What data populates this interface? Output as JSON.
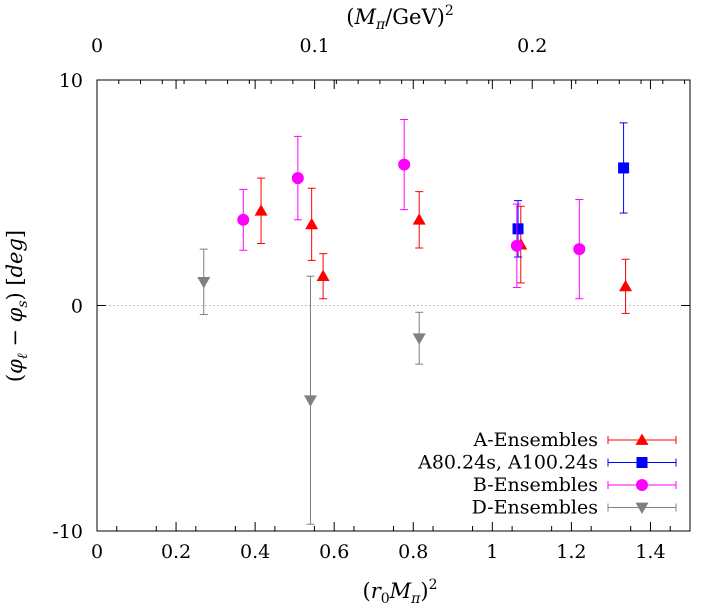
{
  "chart_data": {
    "type": "scatter",
    "xlabel": "(r₀Mπ)²",
    "ylabel": "(φℓ − φs) [deg]",
    "x2label": "(Mπ/GeV)²",
    "xlim": [
      0,
      1.5
    ],
    "ylim": [
      -10,
      10
    ],
    "x2lim": [
      0,
      0.2725
    ],
    "xticks": [
      0,
      0.2,
      0.4,
      0.6,
      0.8,
      1,
      1.2,
      1.4
    ],
    "xtick_labels": [
      "0",
      "0.2",
      "0.4",
      "0.6",
      "0.8",
      "1",
      "1.2",
      "1.4"
    ],
    "yticks": [
      -10,
      0,
      10
    ],
    "ytick_labels": [
      "-10",
      "0",
      "10"
    ],
    "x2ticks": [
      0,
      0.1,
      0.2
    ],
    "x2tick_labels": [
      "0",
      "0.1",
      "0.2"
    ],
    "reference_line_y": 0,
    "legend_position": "bottom-right",
    "series": [
      {
        "name": "A-Ensembles",
        "marker": "triangle-up",
        "color": "#ff0000",
        "points": [
          {
            "x": 0.415,
            "y": 4.2,
            "err": 1.45
          },
          {
            "x": 0.543,
            "y": 3.6,
            "err": 1.6
          },
          {
            "x": 0.572,
            "y": 1.3,
            "err": 1.0
          },
          {
            "x": 0.815,
            "y": 3.8,
            "err": 1.25
          },
          {
            "x": 1.072,
            "y": 2.7,
            "err": 1.7
          },
          {
            "x": 1.337,
            "y": 0.85,
            "err": 1.2
          }
        ]
      },
      {
        "name": "A80.24s, A100.24s",
        "marker": "square",
        "color": "#0000ff",
        "points": [
          {
            "x": 1.065,
            "y": 3.4,
            "err": 1.25
          },
          {
            "x": 1.332,
            "y": 6.1,
            "err": 2.0
          }
        ]
      },
      {
        "name": "B-Ensembles",
        "marker": "circle",
        "color": "#ff00ff",
        "points": [
          {
            "x": 0.37,
            "y": 3.8,
            "err": 1.35
          },
          {
            "x": 0.508,
            "y": 5.65,
            "err": 1.85
          },
          {
            "x": 0.777,
            "y": 6.25,
            "err": 2.0
          },
          {
            "x": 1.062,
            "y": 2.65,
            "err": 1.85
          },
          {
            "x": 1.22,
            "y": 2.5,
            "err": 2.2
          }
        ]
      },
      {
        "name": "D-Ensembles",
        "marker": "triangle-down",
        "color": "#808080",
        "points": [
          {
            "x": 0.27,
            "y": 1.05,
            "err": 1.45
          },
          {
            "x": 0.54,
            "y": -4.2,
            "err": 5.5
          },
          {
            "x": 0.815,
            "y": -1.45,
            "err": 1.15
          }
        ]
      }
    ]
  }
}
